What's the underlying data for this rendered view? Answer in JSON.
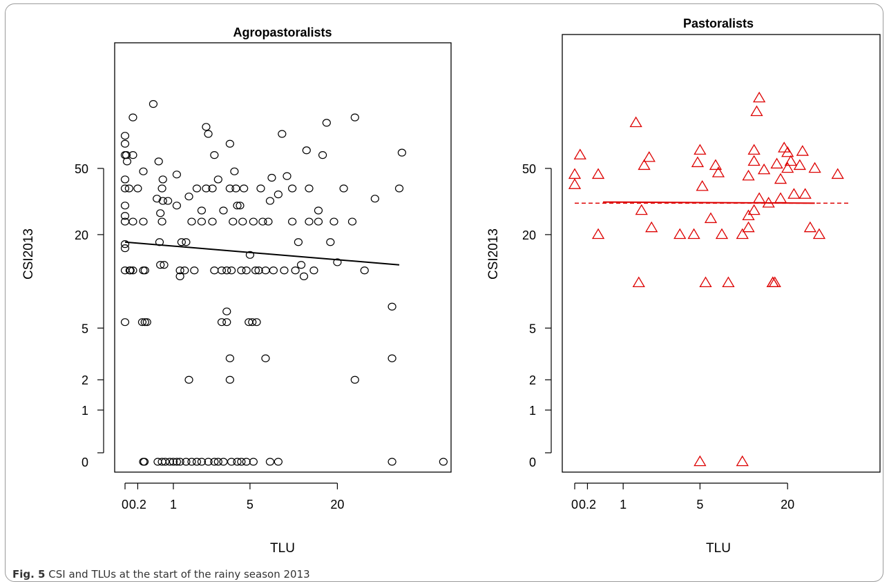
{
  "caption": {
    "label": "Fig. 5",
    "text": "CSI and TLUs at the start of the rainy season 2013"
  },
  "chart_data": [
    {
      "type": "scatter",
      "title": "Agropastoralists",
      "xlabel": "TLU",
      "ylabel": "CSI2013",
      "x_ticks": [
        "0",
        "0.2",
        "1",
        "5",
        "20"
      ],
      "y_ticks": [
        "0",
        "1",
        "2",
        "5",
        "20",
        "50"
      ],
      "marker": "circle",
      "color": "#000000",
      "points": [
        [
          0,
          78
        ],
        [
          0,
          70
        ],
        [
          0,
          60
        ],
        [
          0,
          43
        ],
        [
          0,
          38
        ],
        [
          0,
          30
        ],
        [
          0,
          26
        ],
        [
          0,
          24
        ],
        [
          0,
          17.5
        ],
        [
          0,
          16.5
        ],
        [
          0,
          12
        ],
        [
          0,
          5.5
        ],
        [
          0.02,
          60
        ],
        [
          0.03,
          55
        ],
        [
          0.06,
          38
        ],
        [
          0.07,
          12
        ],
        [
          0.08,
          12
        ],
        [
          0.12,
          24
        ],
        [
          0.12,
          12
        ],
        [
          0.12,
          60
        ],
        [
          0.12,
          100
        ],
        [
          0.2,
          38
        ],
        [
          0.28,
          5.5
        ],
        [
          0.3,
          24
        ],
        [
          0.3,
          48
        ],
        [
          0.3,
          12
        ],
        [
          0.33,
          12
        ],
        [
          0.33,
          5.5
        ],
        [
          0.37,
          5.5
        ],
        [
          0.5,
          120
        ],
        [
          0.58,
          33
        ],
        [
          0.62,
          55
        ],
        [
          0.64,
          18
        ],
        [
          0.66,
          13
        ],
        [
          0.66,
          27
        ],
        [
          0.7,
          24
        ],
        [
          0.7,
          38
        ],
        [
          0.72,
          43
        ],
        [
          0.72,
          32
        ],
        [
          0.75,
          13
        ],
        [
          0.85,
          32
        ],
        [
          1.1,
          30
        ],
        [
          1.1,
          46
        ],
        [
          1.2,
          12
        ],
        [
          1.2,
          11
        ],
        [
          1.25,
          18
        ],
        [
          1.35,
          12
        ],
        [
          1.4,
          18
        ],
        [
          1.5,
          34
        ],
        [
          1.6,
          24
        ],
        [
          1.7,
          12
        ],
        [
          1.8,
          38
        ],
        [
          2.0,
          24
        ],
        [
          2.0,
          28
        ],
        [
          2.2,
          38
        ],
        [
          2.2,
          88
        ],
        [
          2.3,
          80
        ],
        [
          2.5,
          24
        ],
        [
          2.5,
          38
        ],
        [
          2.6,
          12
        ],
        [
          2.6,
          60
        ],
        [
          2.8,
          43
        ],
        [
          3.0,
          12
        ],
        [
          3.1,
          28
        ],
        [
          3.3,
          12
        ],
        [
          3.5,
          38
        ],
        [
          3.5,
          70
        ],
        [
          3.6,
          12
        ],
        [
          3.7,
          24
        ],
        [
          3.8,
          48
        ],
        [
          3.9,
          38
        ],
        [
          4.0,
          30
        ],
        [
          4.2,
          30
        ],
        [
          4.3,
          12
        ],
        [
          4.4,
          24
        ],
        [
          4.5,
          38
        ],
        [
          4.7,
          12
        ],
        [
          4.9,
          5.5
        ],
        [
          5.0,
          15
        ],
        [
          5.2,
          5.5
        ],
        [
          5.3,
          24
        ],
        [
          5.5,
          12
        ],
        [
          5.6,
          5.5
        ],
        [
          5.8,
          12
        ],
        [
          6.0,
          38
        ],
        [
          6.2,
          24
        ],
        [
          6.5,
          12
        ],
        [
          6.8,
          24
        ],
        [
          7.0,
          32
        ],
        [
          7.2,
          44
        ],
        [
          7.4,
          12
        ],
        [
          8.0,
          35
        ],
        [
          8.5,
          80
        ],
        [
          8.8,
          12
        ],
        [
          9.2,
          45
        ],
        [
          10,
          38
        ],
        [
          10,
          24
        ],
        [
          10.5,
          12
        ],
        [
          11,
          18
        ],
        [
          11.5,
          13
        ],
        [
          12,
          11
        ],
        [
          12.5,
          64
        ],
        [
          13,
          24
        ],
        [
          13,
          38
        ],
        [
          14,
          12
        ],
        [
          15,
          24
        ],
        [
          15,
          28
        ],
        [
          16,
          60
        ],
        [
          17,
          93
        ],
        [
          18,
          18
        ],
        [
          19,
          24
        ],
        [
          20,
          13.5
        ],
        [
          22,
          38
        ],
        [
          25,
          24
        ],
        [
          26,
          100
        ],
        [
          26,
          2
        ],
        [
          30,
          12
        ],
        [
          35,
          33
        ],
        [
          45,
          7
        ],
        [
          45,
          3
        ],
        [
          50,
          38
        ],
        [
          52,
          62
        ],
        [
          1.5,
          2
        ],
        [
          3.5,
          2
        ],
        [
          3.3,
          6.5
        ],
        [
          3.0,
          5.5
        ],
        [
          3.5,
          3
        ],
        [
          6.5,
          3
        ],
        [
          3.3,
          5.5
        ],
        [
          0.3,
          0
        ],
        [
          0.32,
          0
        ],
        [
          0.6,
          0
        ],
        [
          0.7,
          0
        ],
        [
          0.78,
          0
        ],
        [
          0.9,
          0
        ],
        [
          1.0,
          0
        ],
        [
          1.1,
          0
        ],
        [
          1.2,
          0
        ],
        [
          1.4,
          0
        ],
        [
          1.6,
          0
        ],
        [
          1.8,
          0
        ],
        [
          2.0,
          0
        ],
        [
          2.3,
          0
        ],
        [
          2.6,
          0
        ],
        [
          2.8,
          0
        ],
        [
          3.1,
          0
        ],
        [
          3.6,
          0
        ],
        [
          4.0,
          0
        ],
        [
          4.3,
          0
        ],
        [
          4.7,
          0
        ],
        [
          5.3,
          0
        ],
        [
          7.0,
          0
        ],
        [
          8.0,
          0
        ],
        [
          45,
          0
        ],
        [
          95,
          0
        ]
      ],
      "trend_line": {
        "style": "solid",
        "x": [
          0,
          50
        ],
        "y": [
          18,
          13
        ]
      }
    },
    {
      "type": "scatter",
      "title": "Pastoralists",
      "xlabel": "TLU",
      "ylabel": "CSI2013",
      "x_ticks": [
        "0",
        "0.2",
        "1",
        "5",
        "20"
      ],
      "y_ticks": [
        "0",
        "1",
        "2",
        "5",
        "20",
        "50"
      ],
      "marker": "triangle",
      "color": "#dd0000",
      "points": [
        [
          0,
          46
        ],
        [
          0,
          40
        ],
        [
          0.08,
          60
        ],
        [
          0.4,
          46
        ],
        [
          0.4,
          20
        ],
        [
          1.6,
          28
        ],
        [
          1.7,
          52
        ],
        [
          1.9,
          58
        ],
        [
          2.0,
          22
        ],
        [
          1.4,
          93
        ],
        [
          3.5,
          20
        ],
        [
          4.8,
          54
        ],
        [
          5.0,
          64
        ],
        [
          5.2,
          39
        ],
        [
          5.5,
          10
        ],
        [
          6.0,
          25
        ],
        [
          6.5,
          52
        ],
        [
          6.8,
          47
        ],
        [
          7.2,
          20
        ],
        [
          8.0,
          10
        ],
        [
          10,
          20
        ],
        [
          11,
          22
        ],
        [
          11,
          26
        ],
        [
          11,
          45
        ],
        [
          12,
          64
        ],
        [
          12,
          28
        ],
        [
          12,
          55
        ],
        [
          13,
          130
        ],
        [
          12.5,
          108
        ],
        [
          13,
          33
        ],
        [
          14,
          49
        ],
        [
          15,
          31
        ],
        [
          16,
          10
        ],
        [
          16.5,
          10
        ],
        [
          17,
          53
        ],
        [
          18,
          33
        ],
        [
          18,
          43
        ],
        [
          19,
          66
        ],
        [
          20,
          62
        ],
        [
          20,
          50
        ],
        [
          21,
          55
        ],
        [
          22,
          35
        ],
        [
          24,
          52
        ],
        [
          25,
          63
        ],
        [
          26,
          35
        ],
        [
          28,
          22
        ],
        [
          30,
          50
        ],
        [
          32,
          20
        ],
        [
          42,
          46
        ],
        [
          5.0,
          0
        ],
        [
          10,
          0
        ],
        [
          1.5,
          10
        ],
        [
          4.5,
          20
        ],
        [
          16.0,
          10
        ]
      ],
      "trend_line_solid": {
        "style": "solid",
        "x": [
          0.5,
          30
        ],
        "y": [
          31.5,
          31
        ]
      },
      "trend_line_dashed": {
        "style": "dashed",
        "x": [
          0,
          50
        ],
        "y": [
          31,
          31
        ]
      }
    }
  ]
}
